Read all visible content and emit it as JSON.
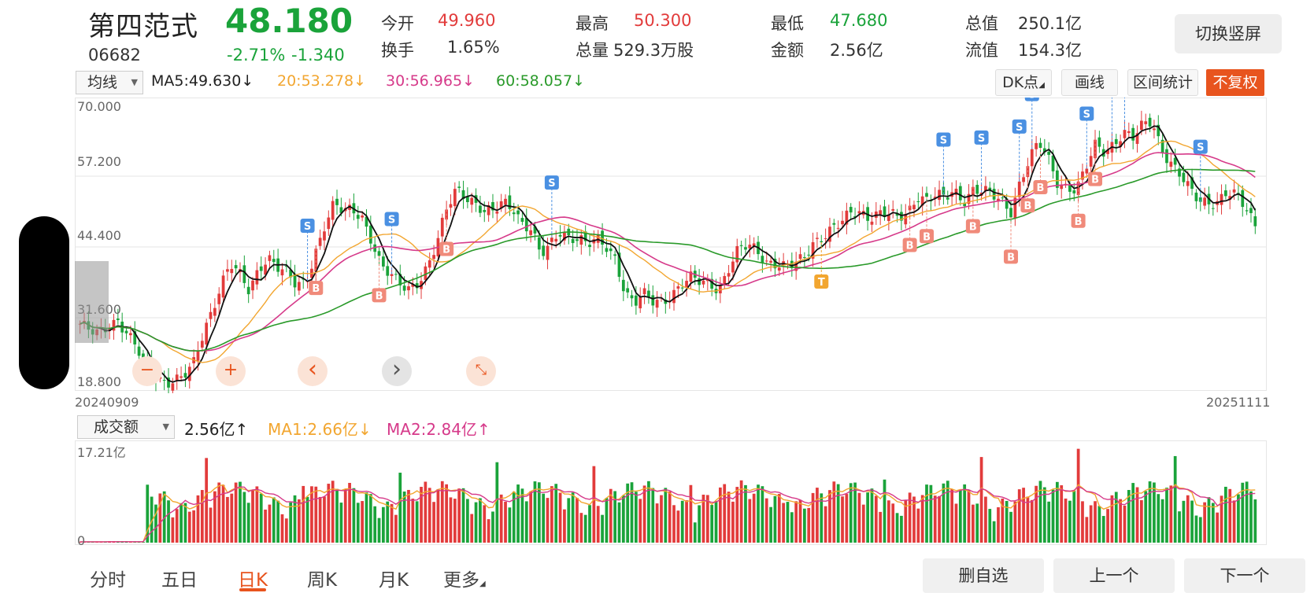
{
  "quote": {
    "name": "第四范式",
    "code": "06682",
    "price": "48.180",
    "change_pct": "-2.71%",
    "change_amt": "-1.340",
    "open_label": "今开",
    "open": "49.960",
    "turnover_label": "换手",
    "turnover": "1.65%",
    "high_label": "最高",
    "high": "50.300",
    "volume_label": "总量",
    "volume": "529.3万股",
    "low_label": "最低",
    "low": "47.680",
    "amount_label": "金额",
    "amount": "2.56亿",
    "mcap_label": "总值",
    "mcap": "250.1亿",
    "float_label": "流值",
    "float": "154.3亿"
  },
  "switch_button": "切换竖屏",
  "toolbar": {
    "indicator": "均线",
    "ma5": "MA5:49.630",
    "ma20": "20:53.278",
    "ma30": "30:56.965",
    "ma60": "60:58.057",
    "dk_button": "DK点",
    "draw_button": "画线",
    "range_button": "区间统计",
    "fq_button": "不复权"
  },
  "price_axis": [
    "70.000",
    "57.200",
    "44.400",
    "31.600",
    "18.800"
  ],
  "date_start": "20240909",
  "date_end": "20251111",
  "volume_toolbar": {
    "indicator": "成交额",
    "value": "2.56亿",
    "ma1": "MA1:2.66亿",
    "ma2": "MA2:2.84亿"
  },
  "volume_axis": {
    "max": "17.21亿",
    "min": "0"
  },
  "zoom_controls": {
    "minus": "−",
    "plus": "+",
    "prev": "‹",
    "next": "›",
    "collapse": "⤡"
  },
  "bottom_tabs": [
    "分时",
    "五日",
    "日K",
    "周K",
    "月K",
    "更多"
  ],
  "bottom_buttons": {
    "remove_watch": "删自选",
    "prev": "上一个",
    "next": "下一个"
  },
  "colors": {
    "up": "#e23b3b",
    "down": "#1aa33a",
    "ma5": "#111111",
    "ma20": "#f2a630",
    "ma30": "#d63a8a",
    "ma60": "#2a9a2a",
    "accent": "#e8541e"
  },
  "chart_data": {
    "type": "candlestick",
    "price_axis": {
      "min": 18.8,
      "max": 70.0
    },
    "x_range": [
      "20240909",
      "20251111"
    ],
    "close_path": [
      30.5,
      29.0,
      28.4,
      30.2,
      31.5,
      29.0,
      26.0,
      22.5,
      20.8,
      20.3,
      20.5,
      21.0,
      22.5,
      28.0,
      33.0,
      38.0,
      41.5,
      39.0,
      36.0,
      40.5,
      43.0,
      41.0,
      39.5,
      37.0,
      38.0,
      43.5,
      48.5,
      52.0,
      50.5,
      51.0,
      50.0,
      46.0,
      41.0,
      39.0,
      37.5,
      37.0,
      38.5,
      41.0,
      45.0,
      51.0,
      55.0,
      54.0,
      52.5,
      50.5,
      50.5,
      52.5,
      52.0,
      49.0,
      47.5,
      42.5,
      44.5,
      47.5,
      46.5,
      46.0,
      44.5,
      45.5,
      44.5,
      42.5,
      36.0,
      34.0,
      35.5,
      34.5,
      35.0,
      36.0,
      37.5,
      38.5,
      38.0,
      38.0,
      37.0,
      40.5,
      43.5,
      44.5,
      44.0,
      42.0,
      41.5,
      40.5,
      41.0,
      42.5,
      45.5,
      46.5,
      47.5,
      48.5,
      50.5,
      51.0,
      50.0,
      50.5,
      50.0,
      49.5,
      50.5,
      54.0,
      53.0,
      53.5,
      53.0,
      54.5,
      53.0,
      55.0,
      54.5,
      53.5,
      52.5,
      51.0,
      56.5,
      60.5,
      63.0,
      60.0,
      56.0,
      55.5,
      55.0,
      58.5,
      62.5,
      61.5,
      63.5,
      65.5,
      64.0,
      66.0,
      67.0,
      62.5,
      60.0,
      57.5,
      54.5,
      52.5,
      52.5,
      53.0,
      54.5,
      53.5,
      51.0,
      48.2
    ],
    "signals": [
      {
        "type": "S",
        "date_index": 30
      },
      {
        "type": "S",
        "date_index": 41
      },
      {
        "type": "S",
        "date_index": 62
      },
      {
        "type": "S",
        "date_index": 113
      },
      {
        "type": "S",
        "date_index": 118
      },
      {
        "type": "S",
        "date_index": 123
      },
      {
        "type": "S",
        "date_index": 125
      },
      {
        "type": "S",
        "date_index": 132
      },
      {
        "type": "S",
        "date_index": 135
      },
      {
        "type": "S",
        "date_index": 137
      },
      {
        "type": "S",
        "date_index": 147
      },
      {
        "type": "B",
        "date_index": 31
      },
      {
        "type": "B",
        "date_index": 39
      },
      {
        "type": "B",
        "date_index": 48
      },
      {
        "type": "T",
        "date_index": 97
      },
      {
        "type": "B",
        "date_index": 109
      },
      {
        "type": "B",
        "date_index": 111
      },
      {
        "type": "B",
        "date_index": 117
      },
      {
        "type": "B",
        "date_index": 122
      },
      {
        "type": "B",
        "date_index": 124
      },
      {
        "type": "B",
        "date_index": 126
      },
      {
        "type": "B",
        "date_index": 131
      },
      {
        "type": "B",
        "date_index": 133
      }
    ],
    "volume_axis": {
      "min": 0,
      "max": 17.21,
      "unit": "亿"
    }
  }
}
